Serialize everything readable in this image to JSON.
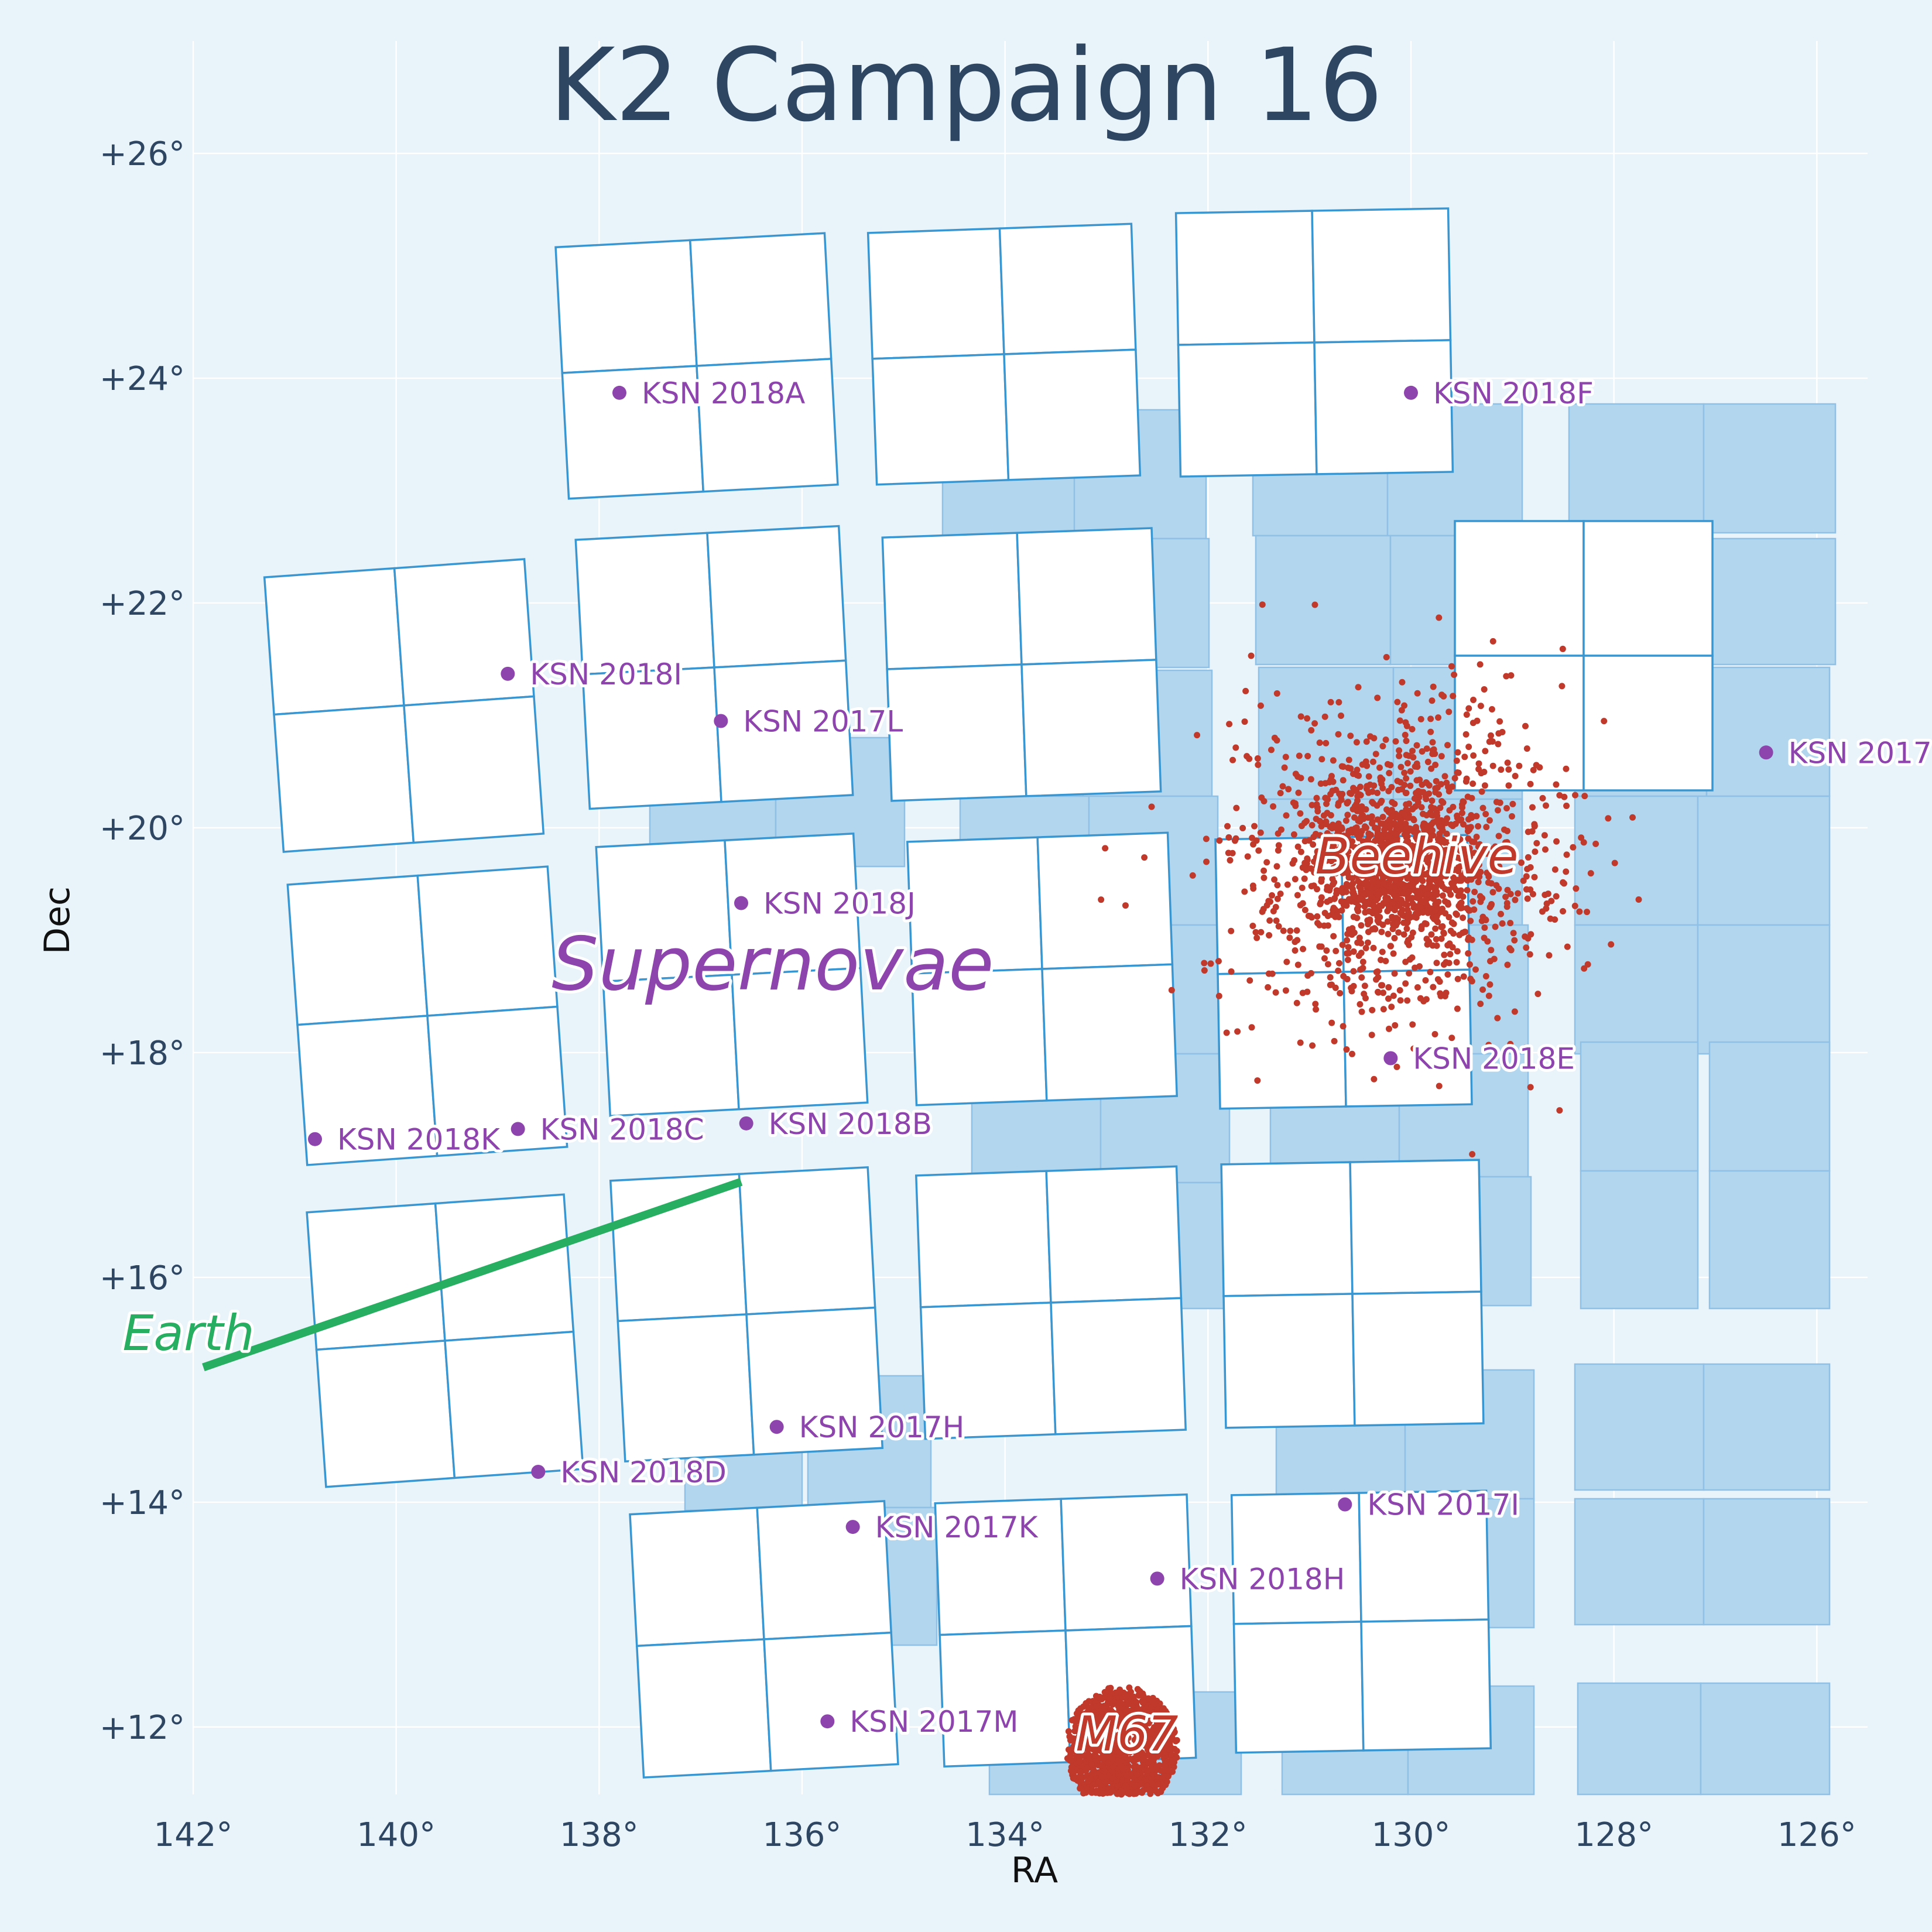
{
  "chart_data": {
    "type": "scatter",
    "title": "K2 Campaign 16",
    "xlabel": "RA",
    "ylabel": "Dec",
    "xlim": [
      142,
      125.5
    ],
    "ylim": [
      11.4,
      27.0
    ],
    "x_ticks": [
      142,
      140,
      138,
      136,
      134,
      132,
      130,
      128,
      126
    ],
    "x_tick_labels": [
      "142°",
      "140°",
      "138°",
      "136°",
      "134°",
      "132°",
      "130°",
      "128°",
      "126°"
    ],
    "y_ticks": [
      12,
      14,
      16,
      18,
      20,
      22,
      24,
      26
    ],
    "y_tick_labels": [
      "+12°",
      "+14°",
      "+16°",
      "+18°",
      "+20°",
      "+22°",
      "+24°",
      "+26°"
    ],
    "grid": true,
    "colors": {
      "background": "#e8f3fa",
      "ccd_edge": "#3a96d0",
      "ccd_fill": "#ffffff",
      "previous_footprint": "#b3d6ef",
      "cluster_points": "#c0392b",
      "supernovae": "#8e44ad",
      "earth_track": "#27ae60",
      "title": "#2e4662"
    },
    "region_labels": {
      "supernovae": "Supernovae",
      "beehive": "Beehive",
      "m67": "M67",
      "earth": "Earth"
    },
    "earth_track": {
      "start": [
        141.9,
        15.2
      ],
      "end": [
        136.6,
        16.85
      ]
    },
    "clusters": [
      {
        "name": "Beehive",
        "ra": 130.1,
        "dec": 19.65,
        "n_points": 1800,
        "spread_ra": 1.55,
        "spread_dec": 1.35
      },
      {
        "name": "M67",
        "ra": 132.85,
        "dec": 11.81,
        "n_points": 1100,
        "radius": 0.55
      }
    ],
    "supernovae": [
      {
        "name": "KSN 2018A",
        "ra": 137.8,
        "dec": 23.87
      },
      {
        "name": "KSN 2018F",
        "ra": 130.0,
        "dec": 23.87
      },
      {
        "name": "KSN 2018I",
        "ra": 138.9,
        "dec": 21.37
      },
      {
        "name": "KSN 2017L",
        "ra": 136.8,
        "dec": 20.95
      },
      {
        "name": "KSN 2017",
        "ra": 126.5,
        "dec": 20.67
      },
      {
        "name": "KSN 2018J",
        "ra": 136.6,
        "dec": 19.33
      },
      {
        "name": "KSN 2018E",
        "ra": 130.2,
        "dec": 17.95
      },
      {
        "name": "KSN 2018K",
        "ra": 140.8,
        "dec": 17.23
      },
      {
        "name": "KSN 2018C",
        "ra": 138.8,
        "dec": 17.32
      },
      {
        "name": "KSN 2018B",
        "ra": 136.55,
        "dec": 17.37
      },
      {
        "name": "KSN 2017H",
        "ra": 136.25,
        "dec": 14.67
      },
      {
        "name": "KSN 2018D",
        "ra": 138.6,
        "dec": 14.27
      },
      {
        "name": "KSN 2017I",
        "ra": 130.65,
        "dec": 13.98
      },
      {
        "name": "KSN 2017K",
        "ra": 135.5,
        "dec": 13.78
      },
      {
        "name": "KSN 2018H",
        "ra": 132.5,
        "dec": 13.32
      },
      {
        "name": "KSN 2017M",
        "ra": 135.75,
        "dec": 12.05
      }
    ]
  }
}
